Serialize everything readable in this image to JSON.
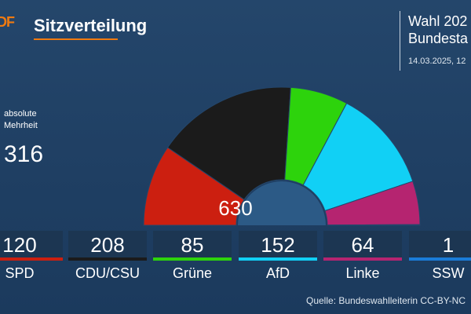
{
  "header": {
    "logo": "DF",
    "title": "Sitzverteilung",
    "election_line1": "Wahl 202",
    "election_line2": "Bundesta",
    "date": "14.03.2025, 12"
  },
  "majority": {
    "label": "absolute Mehrheit",
    "value": "316"
  },
  "source": "Quelle: Bundeswahlleiterin CC-BY-NC",
  "chart_data": {
    "type": "pie",
    "subtype": "half-donut parliament seat distribution",
    "total_label": "630",
    "total": 630,
    "categories": [
      "SPD",
      "CDU/CSU",
      "Grüne",
      "AfD",
      "Linke",
      "SSW"
    ],
    "values": [
      120,
      208,
      85,
      152,
      64,
      1
    ],
    "colors": [
      "#cc1f10",
      "#1b1b1b",
      "#2dd30c",
      "#11d0f5",
      "#b52470",
      "#1a7cd8"
    ]
  }
}
